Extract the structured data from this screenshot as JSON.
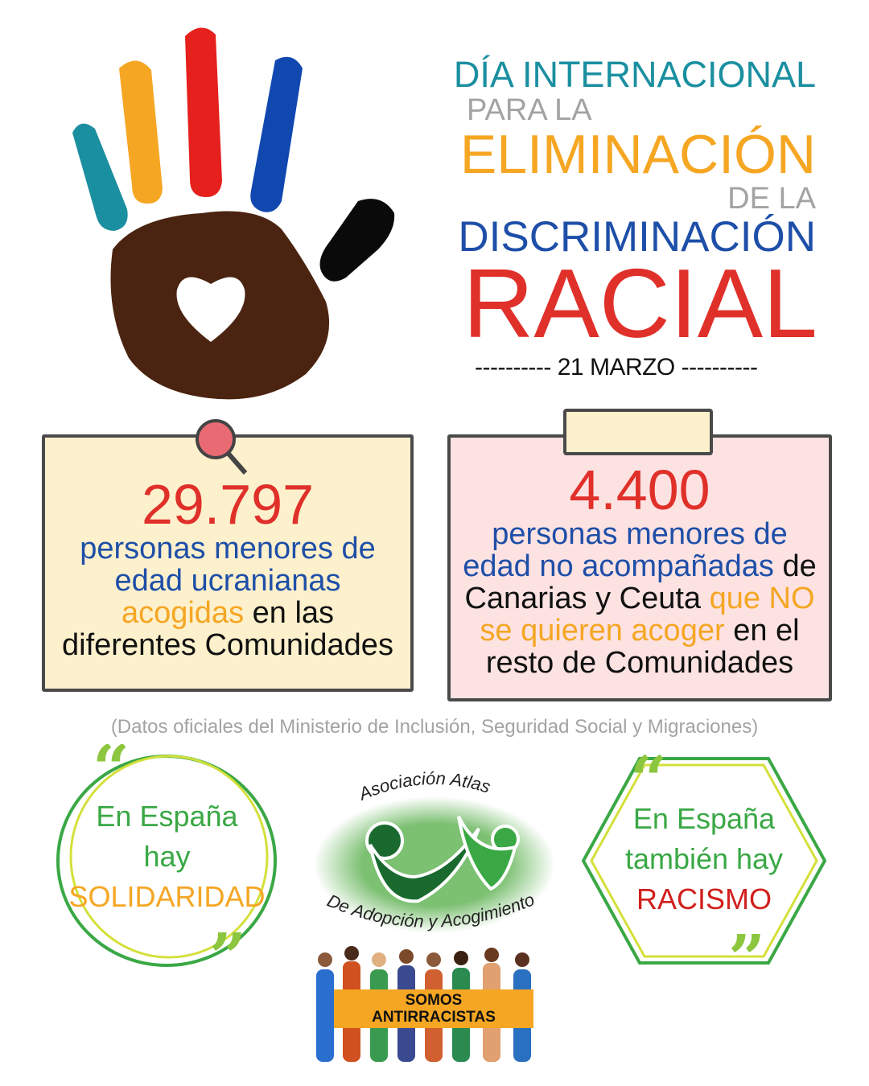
{
  "title": {
    "line1": "DÍA INTERNACIONAL",
    "line2": "PARA LA",
    "line3": "ELIMINACIÓN",
    "line4": "DE LA",
    "line5": "DISCRIMINACIÓN",
    "line6": "RACIAL",
    "date": "---------- 21 MARZO ----------"
  },
  "colors": {
    "teal": "#1a8fa0",
    "grey": "#a3a3a3",
    "orange": "#f5a623",
    "blue": "#1e4fa8",
    "red": "#e0302a",
    "green": "#3aa845"
  },
  "stats": [
    {
      "number": "29.797",
      "text_blue": "personas menores de edad ucranianas",
      "text_orange": "acogidas",
      "text_black": "en las diferentes Comunidades"
    },
    {
      "number": "4.400",
      "text_blue": "personas menores de edad no acompañadas",
      "text_black1": "de Canarias y Ceuta",
      "text_orange": "que NO se quieren acoger",
      "text_black2": "en el resto de Comunidades"
    }
  ],
  "source": "(Datos oficiales del Ministerio de Inclusión, Seguridad Social y Migraciones)",
  "quote_left": {
    "line1": "En España",
    "line2": "hay",
    "line3": "SOLIDARIDAD"
  },
  "quote_right": {
    "line1": "En España",
    "line2": "también hay",
    "line3": "RACISMO"
  },
  "logo": {
    "top": "Asociación Atlas",
    "bottom": "De Adopción y Acogimiento"
  },
  "banner": {
    "line1": "SOMOS",
    "line2": "ANTIRRACISTAS"
  }
}
